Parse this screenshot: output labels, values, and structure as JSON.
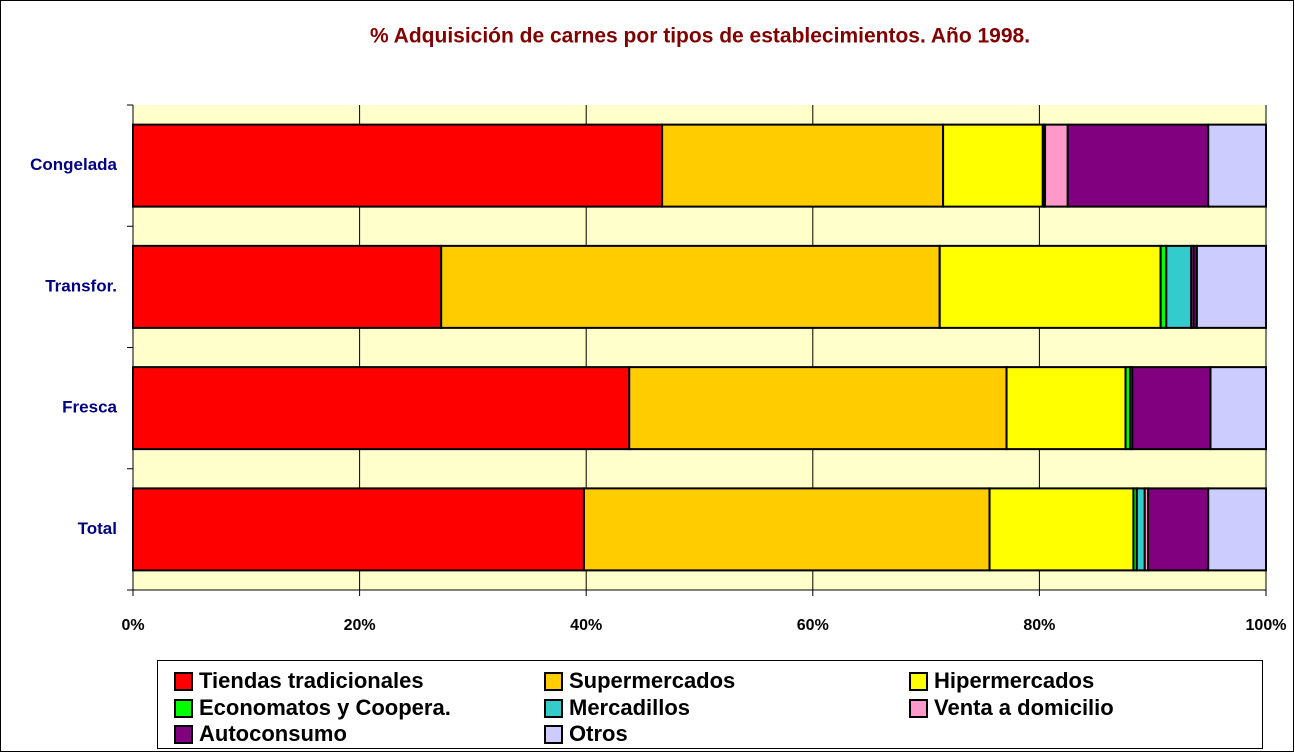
{
  "chart_data": {
    "type": "stacked-bar-horizontal",
    "title": "% Adquisición de carnes por tipos de establecimientos. Año 1998.",
    "categories": [
      "Congelada",
      "Transfor.",
      "Fresca",
      "Total"
    ],
    "series": [
      {
        "name": "Tiendas tradicionales",
        "color": "#ff0000",
        "values": [
          46.7,
          27.2,
          43.8,
          39.8
        ]
      },
      {
        "name": "Supermercados",
        "color": "#ffcc00",
        "values": [
          24.8,
          44.0,
          33.3,
          35.8
        ]
      },
      {
        "name": "Hipermercados",
        "color": "#ffff00",
        "values": [
          8.8,
          19.5,
          10.5,
          12.7
        ]
      },
      {
        "name": "Economatos y Coopera.",
        "color": "#00ff00",
        "values": [
          0.1,
          0.5,
          0.4,
          0.3
        ]
      },
      {
        "name": "Mercadillos",
        "color": "#33cccc",
        "values": [
          0.1,
          2.2,
          0.2,
          0.7
        ]
      },
      {
        "name": "Venta a domicilio",
        "color": "#ff99cc",
        "values": [
          2.0,
          0.2,
          0,
          0.3
        ]
      },
      {
        "name": "Autoconsumo",
        "color": "#800080",
        "values": [
          12.4,
          0.3,
          6.9,
          5.3
        ]
      },
      {
        "name": "Otros",
        "color": "#ccccff",
        "values": [
          5.1,
          6.1,
          4.9,
          5.1
        ]
      }
    ],
    "xlim": [
      0,
      100
    ],
    "xticks": [
      {
        "value": 0,
        "label": "0%"
      },
      {
        "value": 20,
        "label": "20%"
      },
      {
        "value": 40,
        "label": "40%"
      },
      {
        "value": 60,
        "label": "60%"
      },
      {
        "value": 80,
        "label": "80%"
      },
      {
        "value": 100,
        "label": "100%"
      }
    ],
    "grid": true,
    "legend": "bottom"
  }
}
